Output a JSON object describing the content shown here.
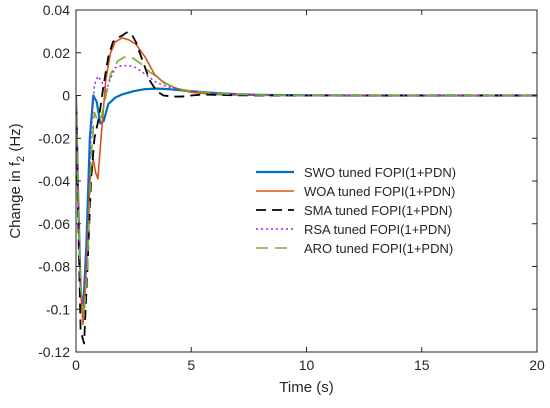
{
  "chart_data": {
    "type": "line",
    "title": "",
    "xlabel": "Time (s)",
    "ylabel_main": "Change in f",
    "ylabel_sub": "2",
    "ylabel_unit": " (Hz)",
    "xlim": [
      0,
      20
    ],
    "ylim": [
      -0.12,
      0.04
    ],
    "xticks": [
      0,
      5,
      10,
      15,
      20
    ],
    "yticks": [
      -0.12,
      -0.1,
      -0.08,
      -0.06,
      -0.04,
      -0.02,
      0,
      0.02,
      0.04
    ],
    "xtick_labels": [
      "0",
      "5",
      "10",
      "15",
      "20"
    ],
    "ytick_labels": [
      "-0.12",
      "-0.1",
      "-0.08",
      "-0.06",
      "-0.04",
      "-0.02",
      "0",
      "0.02",
      "0.04"
    ],
    "grid": false,
    "legend_position": "right-center",
    "series": [
      {
        "name": "SWO tuned FOPI(1+PDN)",
        "color": "#0072BD",
        "dash": "solid",
        "width": 2.2,
        "x": [
          0,
          0.1,
          0.2,
          0.3,
          0.45,
          0.6,
          0.75,
          0.9,
          1.05,
          1.2,
          1.4,
          1.7,
          2.0,
          2.5,
          3.0,
          3.5,
          4.0,
          4.5,
          5.0,
          6.0,
          7.0,
          8.0,
          10.0,
          12.0,
          15.0,
          20.0
        ],
        "y": [
          0,
          -0.05,
          -0.09,
          -0.102,
          -0.07,
          -0.02,
          0.0,
          -0.003,
          -0.013,
          -0.012,
          -0.004,
          -0.001,
          0.0005,
          0.002,
          0.003,
          0.0032,
          0.003,
          0.0025,
          0.002,
          0.0012,
          0.0006,
          0.0003,
          0.0001,
          0.0,
          0.0,
          0.0
        ]
      },
      {
        "name": "WOA tuned FOPI(1+PDN)",
        "color": "#D95319",
        "dash": "solid",
        "width": 1.6,
        "x": [
          0,
          0.1,
          0.2,
          0.3,
          0.45,
          0.6,
          0.75,
          0.85,
          0.95,
          1.1,
          1.3,
          1.5,
          1.7,
          2.0,
          2.3,
          2.6,
          3.0,
          3.4,
          3.8,
          4.2,
          4.6,
          5.0,
          5.5,
          6.0,
          7.0,
          8.0,
          10.0,
          20.0
        ],
        "y": [
          0,
          -0.05,
          -0.09,
          -0.107,
          -0.08,
          -0.04,
          -0.03,
          -0.036,
          -0.039,
          -0.018,
          0.008,
          0.02,
          0.025,
          0.027,
          0.026,
          0.024,
          0.018,
          0.01,
          0.006,
          0.004,
          0.0025,
          0.0015,
          0.001,
          0.0005,
          0.0002,
          0.0001,
          0.0,
          0.0
        ]
      },
      {
        "name": "SMA tuned FOPI(1+PDN)",
        "color": "#000000",
        "dash": "10,6",
        "width": 1.8,
        "x": [
          0,
          0.1,
          0.2,
          0.35,
          0.5,
          0.65,
          0.8,
          1.0,
          1.2,
          1.4,
          1.6,
          1.8,
          2.0,
          2.2,
          2.4,
          2.6,
          2.9,
          3.2,
          3.5,
          3.8,
          4.2,
          4.6,
          5.0,
          5.5,
          6.0,
          7.0,
          8.0,
          10.0,
          20.0
        ],
        "y": [
          0,
          -0.06,
          -0.11,
          -0.116,
          -0.08,
          -0.04,
          -0.02,
          -0.01,
          0.005,
          0.018,
          0.025,
          0.027,
          0.028,
          0.0295,
          0.029,
          0.025,
          0.016,
          0.007,
          0.002,
          0.0,
          -0.0005,
          -0.0005,
          0.0,
          0.0005,
          0.0003,
          0.0001,
          0.0,
          0.0,
          0.0
        ]
      },
      {
        "name": "RSA tuned FOPI(1+PDN)",
        "color": "#A020F0",
        "dash": "2,3",
        "width": 1.5,
        "x": [
          0,
          0.1,
          0.2,
          0.35,
          0.5,
          0.65,
          0.8,
          0.95,
          1.1,
          1.3,
          1.5,
          1.7,
          2.0,
          2.3,
          2.6,
          3.0,
          3.5,
          4.0,
          4.5,
          5.0,
          5.5,
          6.0,
          7.0,
          8.0,
          10.0,
          20.0
        ],
        "y": [
          0,
          -0.05,
          -0.09,
          -0.1,
          -0.07,
          -0.02,
          0.005,
          0.009,
          0.007,
          0.002,
          0.008,
          0.013,
          0.014,
          0.014,
          0.013,
          0.01,
          0.006,
          0.004,
          0.003,
          0.002,
          0.0015,
          0.001,
          0.0005,
          0.0002,
          0.0,
          0.0
        ]
      },
      {
        "name": "ARO tuned FOPI(1+PDN)",
        "color": "#77AC30",
        "dash": "12,7",
        "width": 1.6,
        "x": [
          0,
          0.1,
          0.2,
          0.35,
          0.5,
          0.65,
          0.8,
          0.95,
          1.1,
          1.3,
          1.5,
          1.8,
          2.1,
          2.4,
          2.8,
          3.2,
          3.6,
          4.0,
          4.5,
          5.0,
          5.5,
          6.0,
          7.0,
          8.0,
          10.0,
          20.0
        ],
        "y": [
          0,
          -0.05,
          -0.09,
          -0.103,
          -0.08,
          -0.03,
          -0.008,
          -0.012,
          -0.01,
          0.0,
          0.01,
          0.016,
          0.018,
          0.018,
          0.015,
          0.011,
          0.008,
          0.005,
          0.003,
          0.002,
          0.0015,
          0.001,
          0.0005,
          0.0002,
          0.0,
          0.0
        ]
      }
    ]
  }
}
